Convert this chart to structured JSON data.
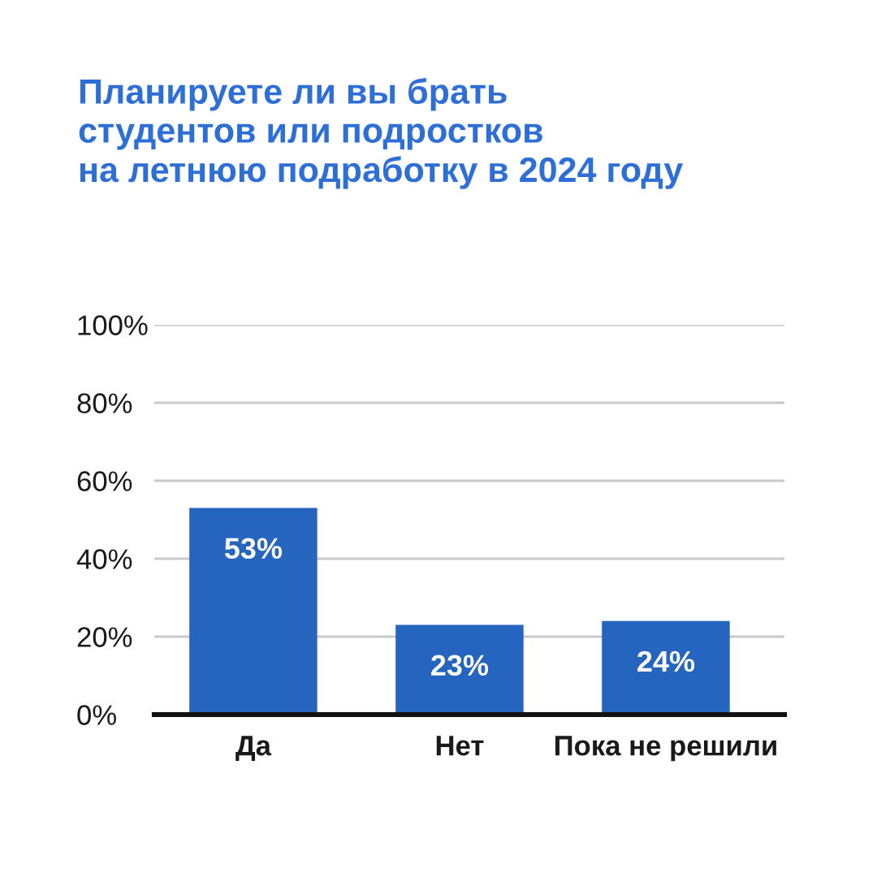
{
  "chart_data": {
    "type": "bar",
    "title": "Планируете ли вы брать\nстудентов или подростков\nна летнюю подработку в 2024 году",
    "categories": [
      "Да",
      "Нет",
      "Пока не решили"
    ],
    "values": [
      53,
      23,
      24
    ],
    "color": "#2565bf",
    "value_labels": [
      "53%",
      "23%",
      "24%"
    ],
    "ylim": [
      0,
      100
    ],
    "yticks": [
      {
        "value": 0,
        "label": "0%"
      },
      {
        "value": 20,
        "label": "20%"
      },
      {
        "value": 40,
        "label": "40%"
      },
      {
        "value": 60,
        "label": "60%"
      },
      {
        "value": 80,
        "label": "80%"
      },
      {
        "value": 100,
        "label": "100%"
      }
    ],
    "grid": "y"
  }
}
